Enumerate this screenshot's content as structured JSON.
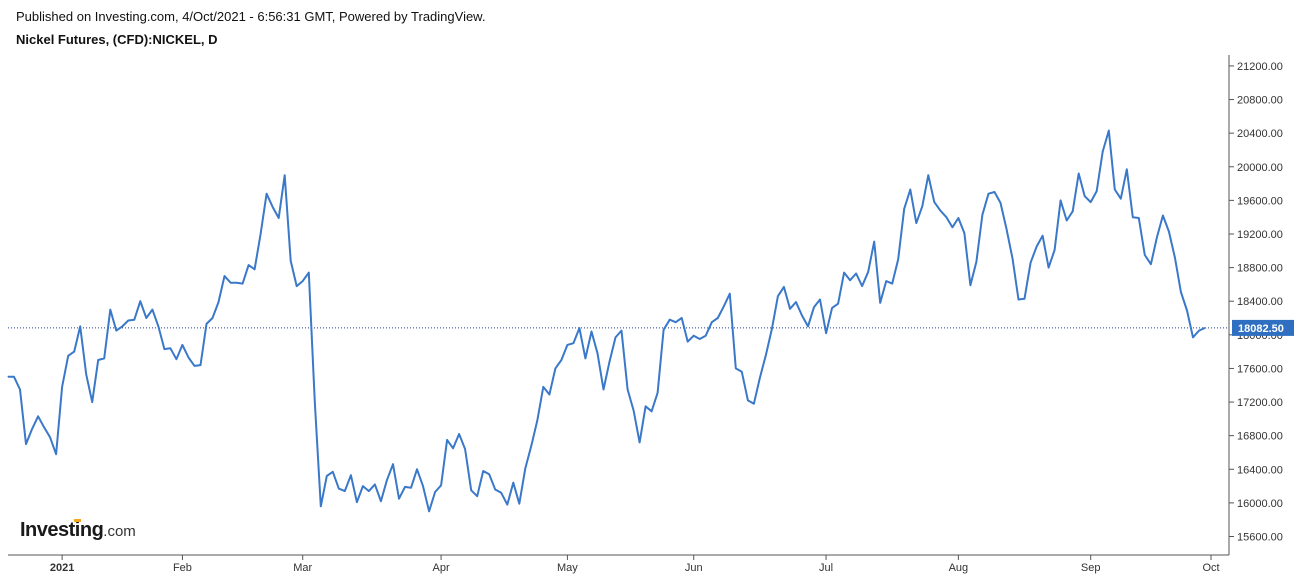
{
  "header": {
    "published": "Published on Investing.com, 4/Oct/2021 - 6:56:31 GMT, Powered by TradingView.",
    "symbol": "Nickel Futures, (CFD):NICKEL, D"
  },
  "logo": {
    "brand": "Investing",
    "suffix": ".com"
  },
  "colors": {
    "line": "#3a78c9",
    "last_price_bg": "#2e6fc2",
    "axis": "#555555",
    "last_price_line": "#1f3f8f"
  },
  "chart_data": {
    "type": "line",
    "series": [
      {
        "values": [
          17500,
          17500,
          17350,
          16700,
          16880,
          17030,
          16900,
          16780,
          16580,
          17380,
          17750,
          17800,
          18100,
          17530,
          17200,
          17700,
          17720,
          18300,
          18050,
          18100,
          18170,
          18180,
          18400,
          18200,
          18300,
          18100,
          17830,
          17840,
          17710,
          17880,
          17730,
          17630,
          17640,
          18130,
          18200,
          18390,
          18700,
          18620,
          18620,
          18610,
          18830,
          18780,
          19200,
          19680,
          19520,
          19390,
          19900,
          18880,
          18580,
          18640,
          18740,
          17200,
          15960,
          16320,
          16370,
          16170,
          16140,
          16330,
          16010,
          16200,
          16140,
          16220,
          16020,
          16270,
          16460,
          16050,
          16190,
          16180,
          16400,
          16200,
          15900,
          16130,
          16210,
          16750,
          16650,
          16820,
          16640,
          16150,
          16080,
          16380,
          16340,
          16160,
          16120,
          15980,
          16240,
          15990,
          16410,
          16680,
          16980,
          17380,
          17290,
          17600,
          17700,
          17880,
          17900,
          18080,
          17720,
          18040,
          17780,
          17350,
          17680,
          17970,
          18050,
          17350,
          17100,
          16720,
          17150,
          17090,
          17310,
          18060,
          18180,
          18150,
          18200,
          17920,
          17990,
          17950,
          17990,
          18150,
          18200,
          18340,
          18490,
          17600,
          17560,
          17220,
          17180,
          17490,
          17760,
          18070,
          18460,
          18570,
          18310,
          18390,
          18230,
          18100,
          18330,
          18420,
          18020,
          18320,
          18370,
          18740,
          18650,
          18730,
          18580,
          18750,
          19110,
          18380,
          18640,
          18610,
          18900,
          19500,
          19730,
          19330,
          19530,
          19900,
          19580,
          19480,
          19400,
          19280,
          19390,
          19210,
          18590,
          18870,
          19430,
          19680,
          19700,
          19570,
          19260,
          18910,
          18420,
          18430,
          18860,
          19050,
          19180,
          18800,
          19010,
          19600,
          19360,
          19470,
          19920,
          19650,
          19580,
          19710,
          20180,
          20430,
          19730,
          19620,
          19970,
          19400,
          19390,
          18950,
          18840,
          19160,
          19420,
          19230,
          18920,
          18510,
          18290,
          17970,
          18050,
          18082.5
        ]
      }
    ],
    "x_ticks": [
      "2021",
      "Feb",
      "Mar",
      "Apr",
      "May",
      "Jun",
      "Jul",
      "Aug",
      "Sep",
      "Oct"
    ],
    "x_tick_index": [
      9,
      29,
      49,
      72,
      93,
      114,
      136,
      158,
      180,
      200
    ],
    "y_ticks": [
      "21200.00",
      "20800.00",
      "20400.00",
      "20000.00",
      "19600.00",
      "19200.00",
      "18800.00",
      "18400.00",
      "18000.00",
      "17600.00",
      "17200.00",
      "16800.00",
      "16400.00",
      "16000.00",
      "15600.00"
    ],
    "ylim": [
      15380,
      21330
    ],
    "last_price": "18082.50",
    "grid": false
  }
}
